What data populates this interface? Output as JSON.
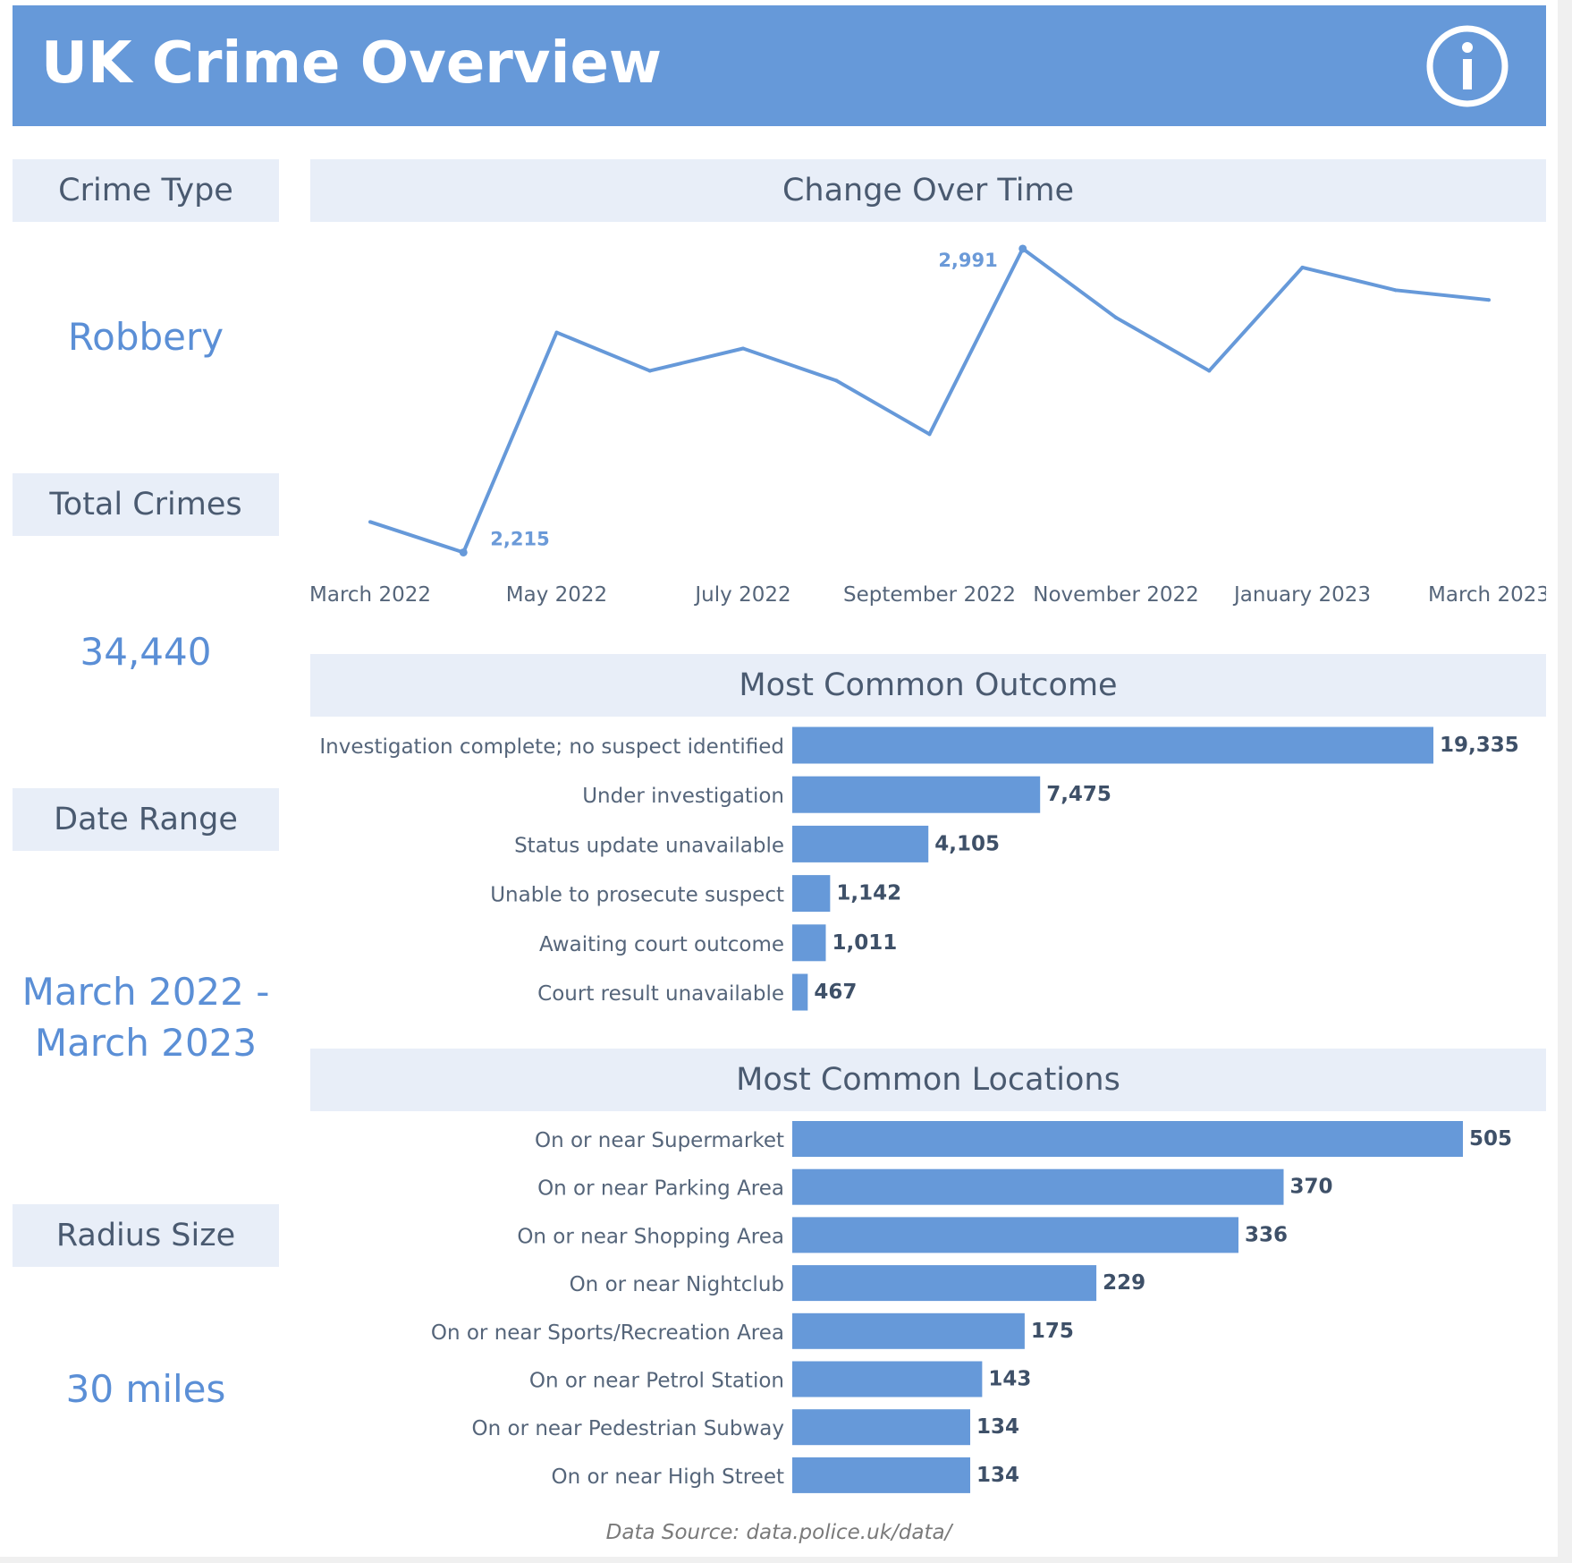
{
  "header": {
    "title": "UK Crime Overview",
    "icon": "info-icon"
  },
  "kpis": {
    "crime_type_label": "Crime Type",
    "crime_type_value": "Robbery",
    "total_label": "Total Crimes",
    "total_value": "34,440",
    "date_label": "Date Range",
    "date_value_line1": "March 2022 -",
    "date_value_line2": "March 2023",
    "radius_label": "Radius Size",
    "radius_value": "30 miles"
  },
  "sections": {
    "time_title": "Change Over Time",
    "outcome_title": "Most Common Outcome",
    "locations_title": "Most Common Locations"
  },
  "footer": {
    "source": "Data Source: data.police.uk/data/"
  },
  "colors": {
    "accent": "#6699d9",
    "panel": "#e8eef8",
    "text": "#4a5a70"
  },
  "chart_data": [
    {
      "type": "line",
      "title": "Change Over Time",
      "x": [
        "March 2022",
        "April 2022",
        "May 2022",
        "June 2022",
        "July 2022",
        "August 2022",
        "September 2022",
        "October 2022",
        "November 2022",
        "December 2022",
        "January 2023",
        "February 2023",
        "March 2023"
      ],
      "values": [
        2293,
        2215,
        2777,
        2679,
        2736,
        2654,
        2517,
        2991,
        2815,
        2679,
        2943,
        2885,
        2860
      ],
      "tick_labels": [
        "March 2022",
        "May 2022",
        "July 2022",
        "September 2022",
        "November 2022",
        "January 2023",
        "March 2023"
      ],
      "point_labels": [
        {
          "index": 1,
          "text": "2,215"
        },
        {
          "index": 7,
          "text": "2,991"
        }
      ],
      "ylim": [
        2200,
        3000
      ],
      "grid": false
    },
    {
      "type": "bar",
      "orientation": "horizontal",
      "title": "Most Common Outcome",
      "categories": [
        "Investigation complete; no suspect identified",
        "Under investigation",
        "Status update unavailable",
        "Unable to prosecute suspect",
        "Awaiting court outcome",
        "Court result unavailable"
      ],
      "values": [
        19335,
        7475,
        4105,
        1142,
        1011,
        467
      ],
      "value_labels": [
        "19,335",
        "7,475",
        "4,105",
        "1,142",
        "1,011",
        "467"
      ]
    },
    {
      "type": "bar",
      "orientation": "horizontal",
      "title": "Most Common Locations",
      "categories": [
        "On or near Supermarket",
        "On or near Parking Area",
        "On or near Shopping Area",
        "On or near Nightclub",
        "On or near Sports/Recreation Area",
        "On or near Petrol Station",
        "On or near Pedestrian Subway",
        "On or near High Street"
      ],
      "values": [
        505,
        370,
        336,
        229,
        175,
        143,
        134,
        134
      ],
      "value_labels": [
        "505",
        "370",
        "336",
        "229",
        "175",
        "143",
        "134",
        "134"
      ]
    }
  ]
}
